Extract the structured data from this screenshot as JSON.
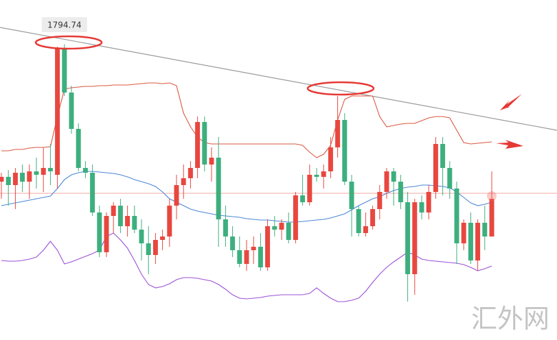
{
  "chart_data": {
    "type": "candlestick",
    "ylim": [
      1751.6,
      1801.2
    ],
    "up_color": "#e8473f",
    "down_color": "#3daf7e",
    "open": [
      1774.7,
      1775.4,
      1774.2,
      1776.0,
      1774.7,
      1776.2,
      1775.7,
      1776.7,
      1775.7,
      1794.2,
      1787.7,
      1782.4,
      1776.7,
      1776.0,
      1770.2,
      1764.4,
      1769.7,
      1771.2,
      1768.2,
      1769.7,
      1767.7,
      1765.7,
      1764.0,
      1766.2,
      1766.7,
      1771.2,
      1774.2,
      1775.2,
      1776.7,
      1783.4,
      1777.2,
      1778.2,
      1769.2,
      1766.7,
      1764.7,
      1762.7,
      1764.7,
      1765.2,
      1762.2,
      1768.2,
      1767.7,
      1768.7,
      1766.2,
      1772.7,
      1771.7,
      1775.7,
      1775.4,
      1776.2,
      1779.7,
      1783.7,
      1774.7,
      1770.7,
      1767.2,
      1768.2,
      1770.7,
      1773.2,
      1776.2,
      1774.7,
      1771.7,
      1761.2,
      1771.7,
      1770.2,
      1773.2,
      1780.2,
      1776.7,
      1773.7,
      1765.7,
      1768.7,
      1763.2,
      1768.7,
      1766.7
    ],
    "high": [
      1776.0,
      1776.4,
      1776.7,
      1777.2,
      1777.2,
      1778.2,
      1779.7,
      1780.2,
      1794.4,
      1794.74,
      1788.7,
      1783.2,
      1777.7,
      1777.2,
      1771.2,
      1770.2,
      1771.7,
      1772.2,
      1771.2,
      1771.2,
      1769.2,
      1768.2,
      1767.2,
      1767.7,
      1772.2,
      1775.7,
      1777.2,
      1777.7,
      1784.2,
      1784.2,
      1779.7,
      1781.2,
      1771.2,
      1768.2,
      1766.7,
      1766.2,
      1766.7,
      1767.2,
      1769.2,
      1769.7,
      1769.2,
      1770.2,
      1773.2,
      1775.7,
      1777.2,
      1776.7,
      1777.2,
      1781.2,
      1787.2,
      1784.7,
      1775.7,
      1771.2,
      1770.2,
      1771.2,
      1774.2,
      1776.7,
      1776.7,
      1775.7,
      1773.2,
      1772.2,
      1772.7,
      1774.2,
      1781.2,
      1781.2,
      1777.7,
      1774.7,
      1769.2,
      1770.2,
      1769.2,
      1771.2,
      1776.2
    ],
    "low": [
      1772.2,
      1771.2,
      1770.7,
      1773.2,
      1772.2,
      1773.7,
      1773.2,
      1774.2,
      1773.7,
      1787.2,
      1781.7,
      1776.2,
      1775.2,
      1769.7,
      1763.7,
      1763.7,
      1767.2,
      1767.2,
      1766.7,
      1767.2,
      1763.2,
      1761.2,
      1762.7,
      1764.7,
      1765.2,
      1769.2,
      1772.2,
      1773.7,
      1775.2,
      1776.2,
      1774.7,
      1765.2,
      1765.2,
      1763.7,
      1762.2,
      1761.7,
      1762.7,
      1761.7,
      1761.7,
      1766.7,
      1766.2,
      1765.7,
      1765.7,
      1771.2,
      1771.2,
      1774.7,
      1773.7,
      1775.2,
      1778.2,
      1774.2,
      1766.7,
      1766.7,
      1766.7,
      1767.7,
      1769.2,
      1772.2,
      1771.2,
      1770.7,
      1757.2,
      1758.2,
      1769.2,
      1769.2,
      1772.2,
      1772.7,
      1772.2,
      1762.7,
      1764.7,
      1762.7,
      1761.7,
      1764.7,
      1766.7
    ],
    "close": [
      1775.4,
      1774.2,
      1776.0,
      1774.7,
      1776.2,
      1775.7,
      1776.7,
      1776.2,
      1794.2,
      1787.7,
      1782.4,
      1776.7,
      1776.0,
      1770.2,
      1764.4,
      1769.7,
      1771.2,
      1768.2,
      1769.7,
      1767.7,
      1765.7,
      1764.0,
      1766.2,
      1766.7,
      1771.2,
      1774.2,
      1775.2,
      1776.7,
      1783.4,
      1777.2,
      1778.2,
      1769.2,
      1766.7,
      1764.7,
      1762.7,
      1764.7,
      1765.2,
      1762.2,
      1768.2,
      1767.7,
      1768.7,
      1766.2,
      1772.7,
      1771.7,
      1775.7,
      1775.4,
      1776.2,
      1779.7,
      1783.7,
      1774.7,
      1770.7,
      1767.2,
      1768.2,
      1770.7,
      1773.2,
      1776.2,
      1774.7,
      1771.7,
      1761.2,
      1771.7,
      1770.2,
      1773.2,
      1780.2,
      1776.7,
      1773.7,
      1765.7,
      1768.7,
      1763.2,
      1768.7,
      1766.7,
      1772.2
    ],
    "lines": [
      {
        "color": "#d9573f",
        "values": [
          1779.2,
          1779.2,
          1779.4,
          1779.4,
          1779.6,
          1779.7,
          1779.7,
          1779.8,
          1784.2,
          1788.2,
          1788.4,
          1788.5,
          1788.6,
          1788.6,
          1788.7,
          1788.7,
          1788.8,
          1788.8,
          1788.8,
          1788.9,
          1789.0,
          1789.1,
          1789.1,
          1789.0,
          1789.1,
          1788.7,
          1784.7,
          1782.7,
          1781.2,
          1780.4,
          1780.2,
          1780.2,
          1780.2,
          1780.2,
          1780.2,
          1780.2,
          1780.2,
          1780.2,
          1780.2,
          1780.2,
          1780.2,
          1780.2,
          1780.2,
          1780.0,
          1779.0,
          1778.2,
          1778.7,
          1780.0,
          1783.7,
          1786.7,
          1787.2,
          1787.2,
          1787.2,
          1787.2,
          1784.2,
          1782.7,
          1782.9,
          1783.1,
          1783.2,
          1783.2,
          1783.6,
          1784.0,
          1784.2,
          1784.2,
          1784.0,
          1782.2,
          1780.4,
          1780.2,
          1780.3,
          1780.4,
          1780.5
        ]
      },
      {
        "color": "#4a86d8",
        "values": [
          1771.2,
          1771.4,
          1771.6,
          1771.8,
          1772.0,
          1772.2,
          1772.4,
          1772.6,
          1773.7,
          1775.0,
          1775.7,
          1776.0,
          1776.2,
          1776.2,
          1776.1,
          1776.0,
          1775.9,
          1775.7,
          1775.4,
          1775.0,
          1774.7,
          1774.4,
          1774.0,
          1773.2,
          1772.2,
          1771.7,
          1771.2,
          1770.7,
          1770.4,
          1770.2,
          1770.0,
          1769.8,
          1769.7,
          1769.6,
          1769.5,
          1769.3,
          1769.2,
          1769.1,
          1769.1,
          1769.0,
          1768.9,
          1768.8,
          1768.8,
          1768.9,
          1769.0,
          1769.1,
          1769.2,
          1769.4,
          1769.7,
          1770.0,
          1770.6,
          1771.2,
          1771.7,
          1772.2,
          1772.5,
          1773.0,
          1773.4,
          1773.7,
          1773.9,
          1774.0,
          1774.2,
          1774.2,
          1774.1,
          1774.0,
          1773.8,
          1773.2,
          1772.4,
          1771.6,
          1771.2,
          1771.4,
          1771.7
        ]
      },
      {
        "color": "#9b4fd6",
        "values": [
          1763.2,
          1763.1,
          1763.1,
          1763.2,
          1763.4,
          1763.7,
          1764.7,
          1766.0,
          1764.7,
          1762.7,
          1763.0,
          1763.4,
          1763.8,
          1764.2,
          1764.7,
          1766.7,
          1767.2,
          1766.2,
          1765.0,
          1763.2,
          1761.2,
          1759.7,
          1759.2,
          1759.4,
          1759.8,
          1760.4,
          1760.7,
          1760.7,
          1760.6,
          1760.4,
          1760.2,
          1759.7,
          1759.0,
          1758.2,
          1757.7,
          1757.6,
          1757.7,
          1757.8,
          1758.0,
          1758.1,
          1758.2,
          1758.2,
          1758.2,
          1758.2,
          1758.4,
          1759.2,
          1758.4,
          1757.7,
          1757.2,
          1757.2,
          1757.4,
          1757.7,
          1758.7,
          1760.0,
          1761.2,
          1762.2,
          1763.0,
          1763.7,
          1764.4,
          1764.0,
          1763.4,
          1763.2,
          1763.1,
          1763.0,
          1762.9,
          1762.8,
          1762.6,
          1762.2,
          1761.7,
          1762.0,
          1762.4
        ]
      }
    ]
  },
  "watermark": "汇外网"
}
